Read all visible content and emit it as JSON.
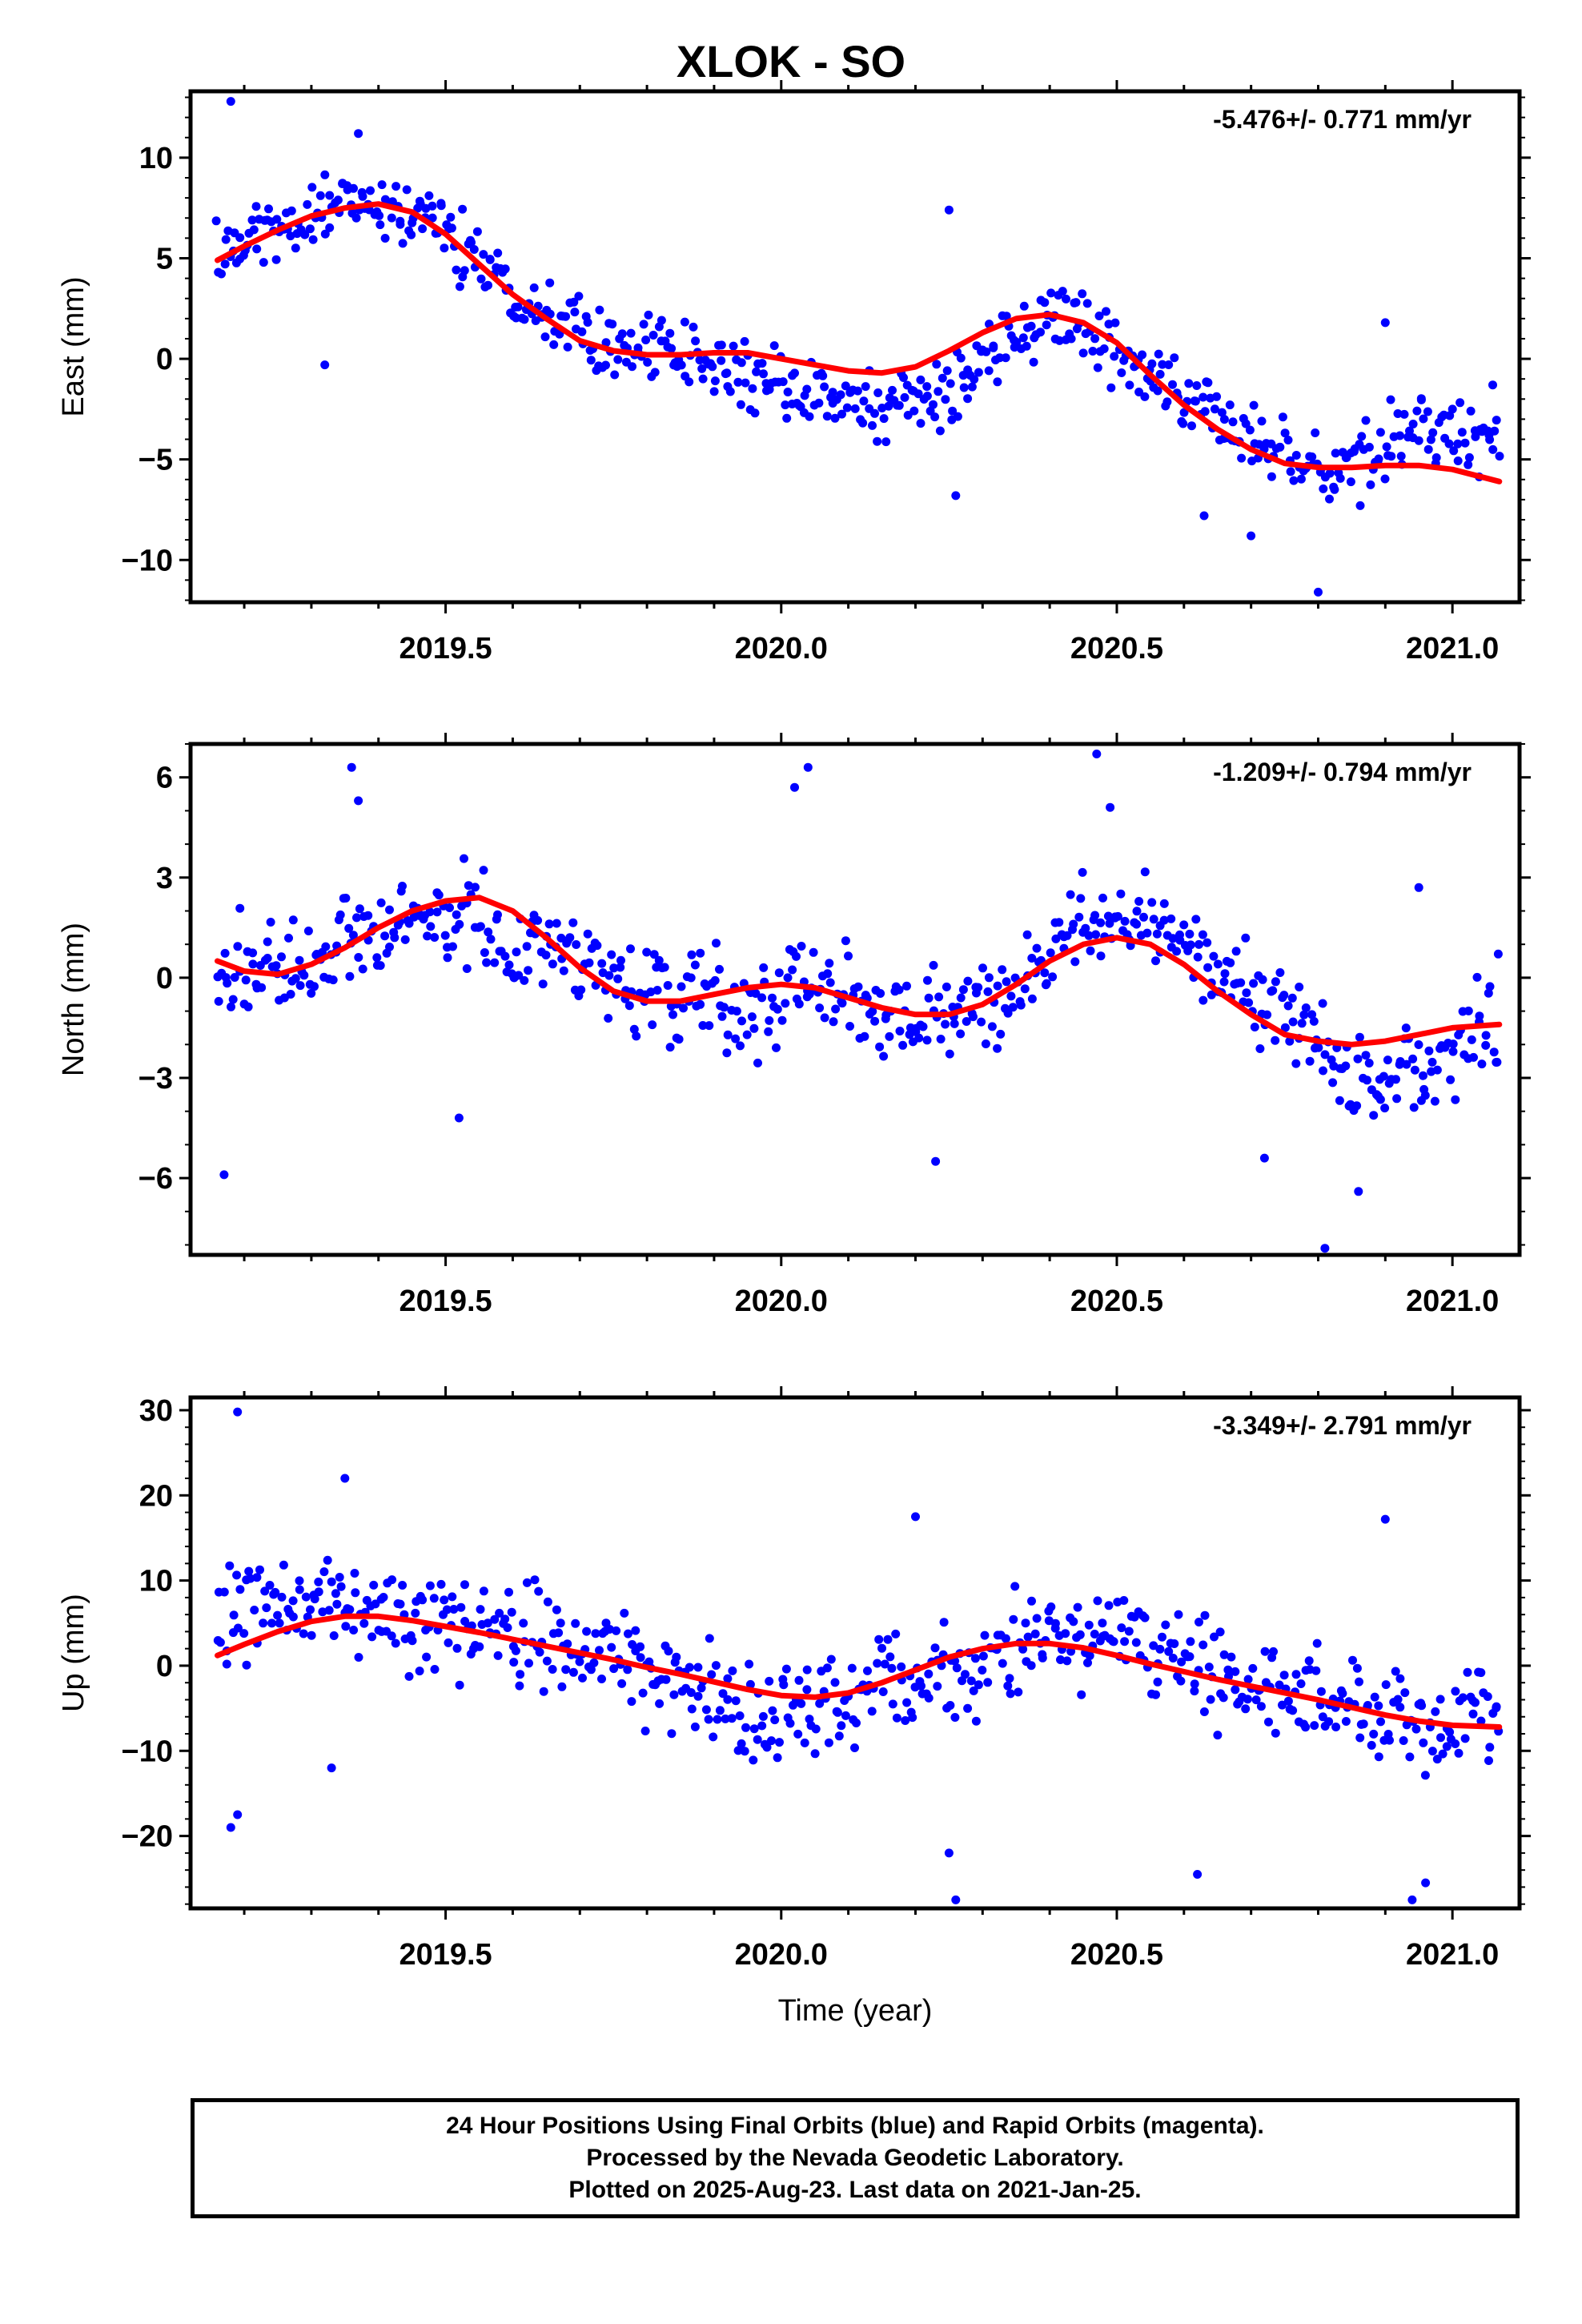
{
  "title": "XLOK - SO",
  "footer": {
    "line1": "24 Hour Positions Using Final Orbits (blue) and Rapid Orbits (magenta).",
    "line2": "Processed by the Nevada Geodetic Laboratory.",
    "line3": "Plotted on 2025-Aug-23. Last data on 2021-Jan-25."
  },
  "colors": {
    "points": "#0000ff",
    "fit": "#ff0000",
    "frame": "#000000"
  },
  "chart_data": [
    {
      "type": "scatter",
      "ylabel": "East (mm)",
      "xlabel": "",
      "rate_label": "-5.476+/- 0.771 mm/yr",
      "xlim": [
        2019.12,
        2021.1
      ],
      "ylim": [
        -12.1,
        13.3
      ],
      "xticks": [
        2019.5,
        2020.0,
        2020.5,
        2021.0
      ],
      "xtick_labels": [
        "2019.5",
        "2020.0",
        "2020.5",
        "2021.0"
      ],
      "yticks": [
        10,
        5,
        0,
        -5,
        -10
      ],
      "ytick_labels": [
        "10",
        "5",
        "0",
        "−5",
        "−10"
      ],
      "fit_x": [
        2019.16,
        2019.2,
        2019.25,
        2019.3,
        2019.35,
        2019.4,
        2019.45,
        2019.5,
        2019.55,
        2019.6,
        2019.65,
        2019.7,
        2019.75,
        2019.8,
        2019.85,
        2019.9,
        2019.95,
        2020.0,
        2020.05,
        2020.1,
        2020.15,
        2020.2,
        2020.25,
        2020.3,
        2020.35,
        2020.4,
        2020.45,
        2020.5,
        2020.55,
        2020.6,
        2020.65,
        2020.7,
        2020.75,
        2020.8,
        2020.85,
        2020.9,
        2020.95,
        2021.0,
        2021.07
      ],
      "fit_y": [
        4.9,
        5.6,
        6.4,
        7.1,
        7.5,
        7.7,
        7.3,
        6.2,
        4.7,
        3.2,
        2.0,
        0.9,
        0.4,
        0.2,
        0.2,
        0.3,
        0.3,
        0.0,
        -0.3,
        -0.6,
        -0.7,
        -0.4,
        0.4,
        1.3,
        2.0,
        2.2,
        1.8,
        0.8,
        -0.8,
        -2.3,
        -3.5,
        -4.5,
        -5.2,
        -5.4,
        -5.4,
        -5.3,
        -5.3,
        -5.5,
        -6.1
      ],
      "scatter": {
        "anchors_x": [
          2019.16,
          2019.25,
          2019.35,
          2019.45,
          2019.55,
          2019.65,
          2019.75,
          2019.85,
          2019.95,
          2020.05,
          2020.15,
          2020.25,
          2020.35,
          2020.45,
          2020.55,
          2020.65,
          2020.75,
          2020.85,
          2020.95,
          2021.07
        ],
        "anchors_y": [
          5.0,
          6.5,
          7.8,
          7.5,
          5.0,
          2.5,
          0.8,
          0.0,
          -0.8,
          -1.8,
          -2.5,
          -1.5,
          1.2,
          1.8,
          -1.0,
          -3.0,
          -5.0,
          -5.8,
          -3.0,
          -4.5
        ],
        "spread": 1.5,
        "count": 600,
        "outliers": [
          [
            2019.18,
            12.8
          ],
          [
            2019.32,
            -0.3
          ],
          [
            2019.37,
            11.2
          ],
          [
            2020.25,
            7.4
          ],
          [
            2020.26,
            -6.8
          ],
          [
            2020.8,
            -11.6
          ],
          [
            2020.63,
            -7.8
          ],
          [
            2020.7,
            -8.8
          ],
          [
            2020.9,
            1.8
          ],
          [
            2021.06,
            -1.3
          ]
        ]
      }
    },
    {
      "type": "scatter",
      "ylabel": "North (mm)",
      "xlabel": "",
      "rate_label": "-1.209+/- 0.794 mm/yr",
      "xlim": [
        2019.12,
        2021.1
      ],
      "ylim": [
        -8.3,
        7.0
      ],
      "xticks": [
        2019.5,
        2020.0,
        2020.5,
        2021.0
      ],
      "xtick_labels": [
        "2019.5",
        "2020.0",
        "2020.5",
        "2021.0"
      ],
      "yticks": [
        6,
        3,
        0,
        -3,
        -6
      ],
      "ytick_labels": [
        "6",
        "3",
        "0",
        "−3",
        "−6"
      ],
      "fit_x": [
        2019.16,
        2019.2,
        2019.25,
        2019.3,
        2019.35,
        2019.4,
        2019.45,
        2019.5,
        2019.55,
        2019.6,
        2019.65,
        2019.7,
        2019.75,
        2019.8,
        2019.85,
        2019.9,
        2019.95,
        2020.0,
        2020.05,
        2020.1,
        2020.15,
        2020.2,
        2020.25,
        2020.3,
        2020.35,
        2020.4,
        2020.45,
        2020.5,
        2020.55,
        2020.6,
        2020.65,
        2020.7,
        2020.75,
        2020.8,
        2020.85,
        2020.9,
        2020.95,
        2021.0,
        2021.07
      ],
      "fit_y": [
        0.5,
        0.2,
        0.1,
        0.4,
        0.9,
        1.5,
        2.0,
        2.3,
        2.4,
        2.0,
        1.2,
        0.3,
        -0.4,
        -0.7,
        -0.7,
        -0.5,
        -0.3,
        -0.2,
        -0.3,
        -0.6,
        -0.9,
        -1.1,
        -1.1,
        -0.8,
        -0.2,
        0.5,
        1.0,
        1.2,
        1.0,
        0.4,
        -0.4,
        -1.1,
        -1.7,
        -1.9,
        -2.0,
        -1.9,
        -1.7,
        -1.5,
        -1.4
      ],
      "scatter": {
        "anchors_x": [
          2019.16,
          2019.25,
          2019.35,
          2019.45,
          2019.55,
          2019.65,
          2019.75,
          2019.85,
          2019.95,
          2020.05,
          2020.15,
          2020.25,
          2020.35,
          2020.45,
          2020.55,
          2020.65,
          2020.75,
          2020.85,
          2020.95,
          2021.07
        ],
        "anchors_y": [
          0.2,
          0.0,
          1.0,
          1.8,
          1.5,
          0.8,
          0.2,
          -0.6,
          -0.8,
          0.0,
          -1.2,
          -1.2,
          -0.5,
          1.8,
          1.8,
          0.0,
          -1.0,
          -3.0,
          -2.8,
          -1.0
        ],
        "spread": 1.2,
        "count": 600,
        "outliers": [
          [
            2019.17,
            -5.9
          ],
          [
            2019.36,
            6.3
          ],
          [
            2019.37,
            5.3
          ],
          [
            2019.52,
            -4.2
          ],
          [
            2020.02,
            5.7
          ],
          [
            2020.04,
            6.3
          ],
          [
            2020.23,
            -5.5
          ],
          [
            2020.47,
            6.7
          ],
          [
            2020.49,
            5.1
          ],
          [
            2020.72,
            -5.4
          ],
          [
            2020.81,
            -8.1
          ],
          [
            2020.86,
            -6.4
          ],
          [
            2020.95,
            2.7
          ]
        ]
      }
    },
    {
      "type": "scatter",
      "ylabel": "Up (mm)",
      "xlabel": "Time (year)",
      "rate_label": "-3.349+/- 2.791 mm/yr",
      "xlim": [
        2019.12,
        2021.1
      ],
      "ylim": [
        -28.5,
        31.5
      ],
      "xticks": [
        2019.5,
        2020.0,
        2020.5,
        2021.0
      ],
      "xtick_labels": [
        "2019.5",
        "2020.0",
        "2020.5",
        "2021.0"
      ],
      "yticks": [
        30,
        20,
        10,
        0,
        -10,
        -20
      ],
      "ytick_labels": [
        "30",
        "20",
        "10",
        "0",
        "−10",
        "−20"
      ],
      "fit_x": [
        2019.16,
        2019.2,
        2019.25,
        2019.3,
        2019.35,
        2019.4,
        2019.45,
        2019.5,
        2019.55,
        2019.6,
        2019.65,
        2019.7,
        2019.75,
        2019.8,
        2019.85,
        2019.9,
        2019.95,
        2020.0,
        2020.05,
        2020.1,
        2020.15,
        2020.2,
        2020.25,
        2020.3,
        2020.35,
        2020.4,
        2020.45,
        2020.5,
        2020.55,
        2020.6,
        2020.65,
        2020.7,
        2020.75,
        2020.8,
        2020.85,
        2020.9,
        2020.95,
        2021.0,
        2021.07
      ],
      "fit_y": [
        1.2,
        2.5,
        4.0,
        5.2,
        5.8,
        5.8,
        5.3,
        4.6,
        3.9,
        3.1,
        2.3,
        1.5,
        0.7,
        -0.2,
        -1.0,
        -1.9,
        -2.8,
        -3.5,
        -3.7,
        -3.2,
        -2.0,
        -0.5,
        1.0,
        2.0,
        2.6,
        2.6,
        2.1,
        1.2,
        0.2,
        -0.7,
        -1.6,
        -2.4,
        -3.2,
        -4.0,
        -4.9,
        -5.8,
        -6.5,
        -7.0,
        -7.2
      ],
      "scatter": {
        "anchors_x": [
          2019.16,
          2019.25,
          2019.35,
          2019.45,
          2019.55,
          2019.65,
          2019.75,
          2019.85,
          2019.95,
          2020.05,
          2020.15,
          2020.25,
          2020.35,
          2020.45,
          2020.55,
          2020.65,
          2020.75,
          2020.85,
          2020.95,
          2021.07
        ],
        "anchors_y": [
          4.0,
          7.0,
          9.0,
          5.0,
          4.0,
          3.0,
          1.0,
          -2.0,
          -6.0,
          -6.0,
          -2.0,
          -2.0,
          2.5,
          3.5,
          2.0,
          -2.0,
          -3.0,
          -4.0,
          -8.0,
          -5.0
        ],
        "spread": 5.0,
        "count": 600,
        "outliers": [
          [
            2019.19,
            29.8
          ],
          [
            2019.18,
            -19.0
          ],
          [
            2019.19,
            -17.5
          ],
          [
            2019.35,
            22.0
          ],
          [
            2019.33,
            -12.0
          ],
          [
            2020.2,
            17.5
          ],
          [
            2020.25,
            -22.0
          ],
          [
            2020.26,
            -27.5
          ],
          [
            2020.62,
            -24.5
          ],
          [
            2020.9,
            17.2
          ],
          [
            2020.94,
            -27.5
          ],
          [
            2020.96,
            -25.5
          ]
        ]
      }
    }
  ]
}
